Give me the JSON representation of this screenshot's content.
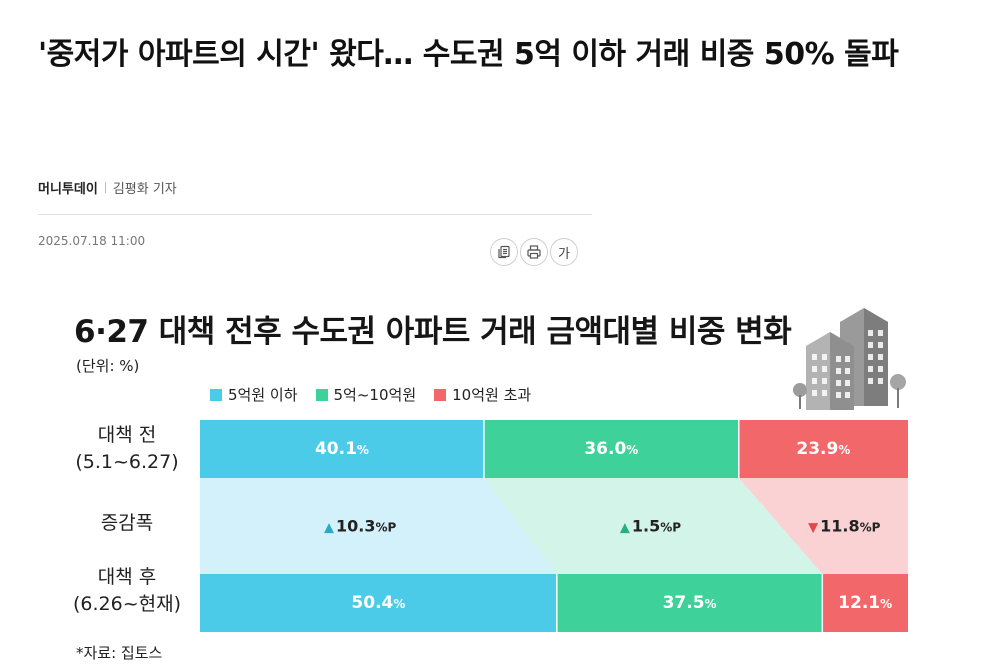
{
  "article": {
    "headline": "'중저가 아파트의 시간' 왔다… 수도권 5억 이하 거래 비중 50% 돌파",
    "press": "머니투데이",
    "reporter": "김평화 기자",
    "datetime": "2025.07.18 11:00",
    "tools": {
      "font_label": "가"
    }
  },
  "infographic": {
    "title": "6·27 대책 전후 수도권 아파트 거래 금액대별 비중 변화",
    "unit": "(단위: %)",
    "source": "*자료: 집토스",
    "row_labels": {
      "before": [
        "대책 전",
        "(5.1~6.27)"
      ],
      "change": "증감폭",
      "after": [
        "대책 후",
        "(6.26~현재)"
      ]
    }
  },
  "chart_data": {
    "type": "bar",
    "orientation": "horizontal-stacked-100",
    "categories": [
      "대책 전 (5.1~6.27)",
      "대책 후 (6.26~현재)"
    ],
    "series": [
      {
        "name": "5억원 이하",
        "values": [
          40.1,
          50.4
        ],
        "change": 10.3,
        "direction": "up"
      },
      {
        "name": "5억~10억원",
        "values": [
          36.0,
          37.5
        ],
        "change": 1.5,
        "direction": "up"
      },
      {
        "name": "10억원 초과",
        "values": [
          23.9,
          12.1
        ],
        "change": 11.8,
        "direction": "down"
      }
    ],
    "value_unit": "%",
    "change_unit": "%P",
    "colors": [
      "#4ccbe8",
      "#3ed29a",
      "#f2676a"
    ],
    "band_colors": [
      "#d2f1fa",
      "#d3f4e8",
      "#fad2d3"
    ],
    "legend_position": "top"
  }
}
